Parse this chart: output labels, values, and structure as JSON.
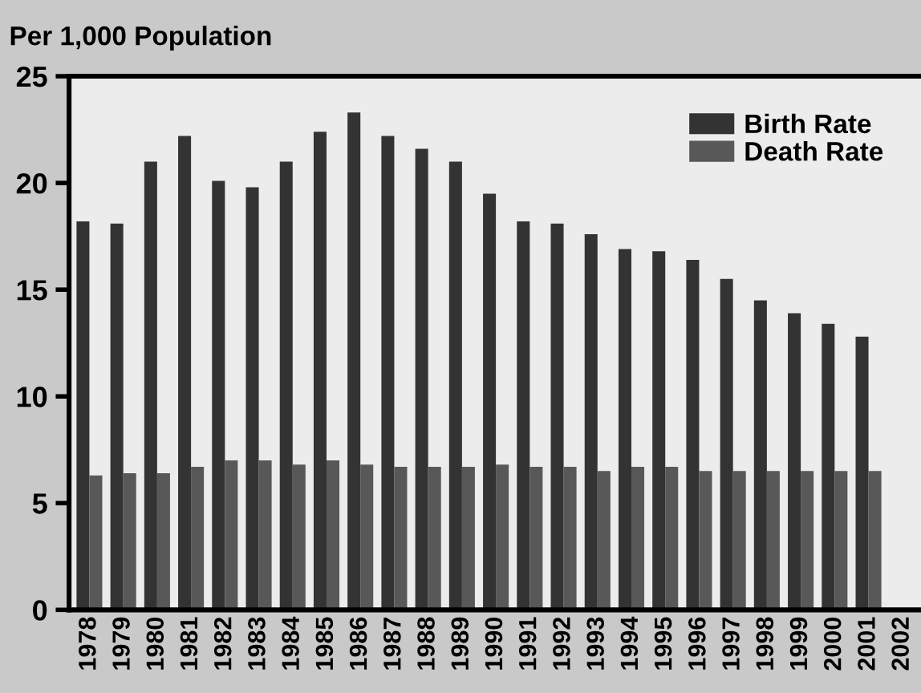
{
  "chart_data": {
    "type": "bar",
    "title": "Per 1,000 Population",
    "categories": [
      "1978",
      "1979",
      "1980",
      "1981",
      "1982",
      "1983",
      "1984",
      "1985",
      "1986",
      "1987",
      "1988",
      "1989",
      "1990",
      "1991",
      "1992",
      "1993",
      "1994",
      "1995",
      "1996",
      "1997",
      "1998",
      "1999",
      "2000",
      "2001",
      "2002"
    ],
    "series": [
      {
        "name": "Birth Rate",
        "color": "#333333",
        "values": [
          18.2,
          18.1,
          21.0,
          22.2,
          20.1,
          19.8,
          21.0,
          22.4,
          23.3,
          22.2,
          21.6,
          21.0,
          19.5,
          18.2,
          18.1,
          17.6,
          16.9,
          16.8,
          16.4,
          15.5,
          14.5,
          13.9,
          13.4,
          12.8,
          null
        ]
      },
      {
        "name": "Death Rate",
        "color": "#585858",
        "values": [
          6.3,
          6.4,
          6.4,
          6.7,
          7.0,
          7.0,
          6.8,
          7.0,
          6.8,
          6.7,
          6.7,
          6.7,
          6.8,
          6.7,
          6.7,
          6.5,
          6.7,
          6.7,
          6.5,
          6.5,
          6.5,
          6.5,
          6.5,
          6.5,
          null
        ]
      }
    ],
    "ylim": [
      0,
      25
    ],
    "yticks": [
      0,
      5,
      10,
      15,
      20,
      25
    ],
    "grid": false,
    "legend": "top right"
  }
}
